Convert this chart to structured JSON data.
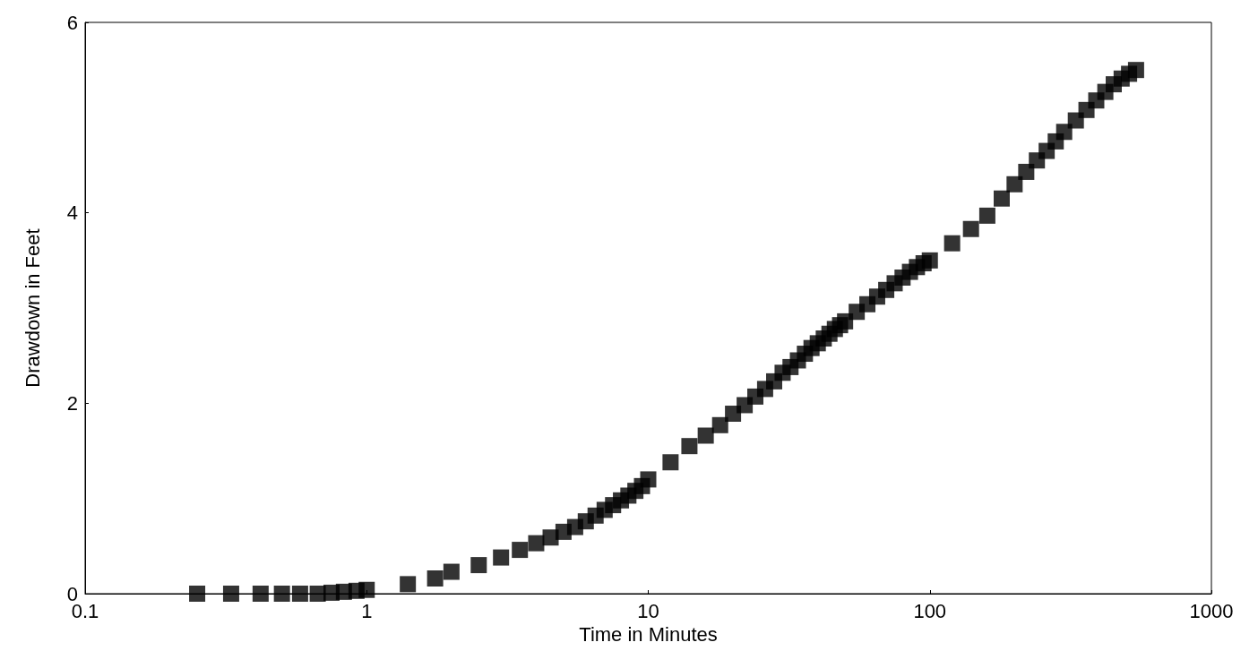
{
  "chart_data": {
    "type": "scatter",
    "xlabel": "Time in Minutes",
    "ylabel": "Drawdown in Feet",
    "log": "x",
    "xlim": [
      0.1,
      1000
    ],
    "xticks": [
      0.1,
      1,
      10,
      100,
      1000
    ],
    "ylim": [
      0,
      6
    ],
    "yticks": [
      0,
      2,
      4,
      6
    ],
    "marker": "square",
    "x": [
      0.25,
      0.33,
      0.42,
      0.5,
      0.58,
      0.67,
      0.75,
      0.83,
      0.92,
      1,
      1.4,
      1.75,
      2,
      2.5,
      3,
      3.5,
      4,
      4.5,
      5,
      5.5,
      6,
      6.5,
      7,
      7.5,
      8,
      8.5,
      9,
      9.5,
      10,
      12,
      14,
      16,
      18,
      20,
      22,
      24,
      26,
      28,
      30,
      32,
      34,
      36,
      38,
      40,
      42,
      44,
      46,
      48,
      50,
      55,
      60,
      65,
      70,
      75,
      80,
      85,
      90,
      95,
      100,
      120,
      140,
      160,
      180,
      200,
      220,
      240,
      260,
      280,
      300,
      330,
      360,
      390,
      420,
      450,
      480,
      510,
      540
    ],
    "series": [
      {
        "color": "#000000",
        "values": [
          0,
          0,
          0,
          0,
          0,
          0,
          0.01,
          0.02,
          0.03,
          0.04,
          0.1,
          0.16,
          0.23,
          0.3,
          0.38,
          0.46,
          0.53,
          0.59,
          0.65,
          0.7,
          0.76,
          0.82,
          0.88,
          0.93,
          0.98,
          1.03,
          1.08,
          1.13,
          1.2,
          1.38,
          1.55,
          1.66,
          1.77,
          1.89,
          1.98,
          2.07,
          2.15,
          2.23,
          2.32,
          2.38,
          2.45,
          2.52,
          2.58,
          2.63,
          2.68,
          2.73,
          2.78,
          2.82,
          2.86,
          2.96,
          3.04,
          3.12,
          3.19,
          3.26,
          3.32,
          3.38,
          3.43,
          3.47,
          3.5,
          3.68,
          3.83,
          3.97,
          4.15,
          4.3,
          4.43,
          4.55,
          4.65,
          4.75,
          4.85,
          4.97,
          5.08,
          5.18,
          5.27,
          5.35,
          5.41,
          5.46,
          5.5
        ]
      }
    ]
  }
}
